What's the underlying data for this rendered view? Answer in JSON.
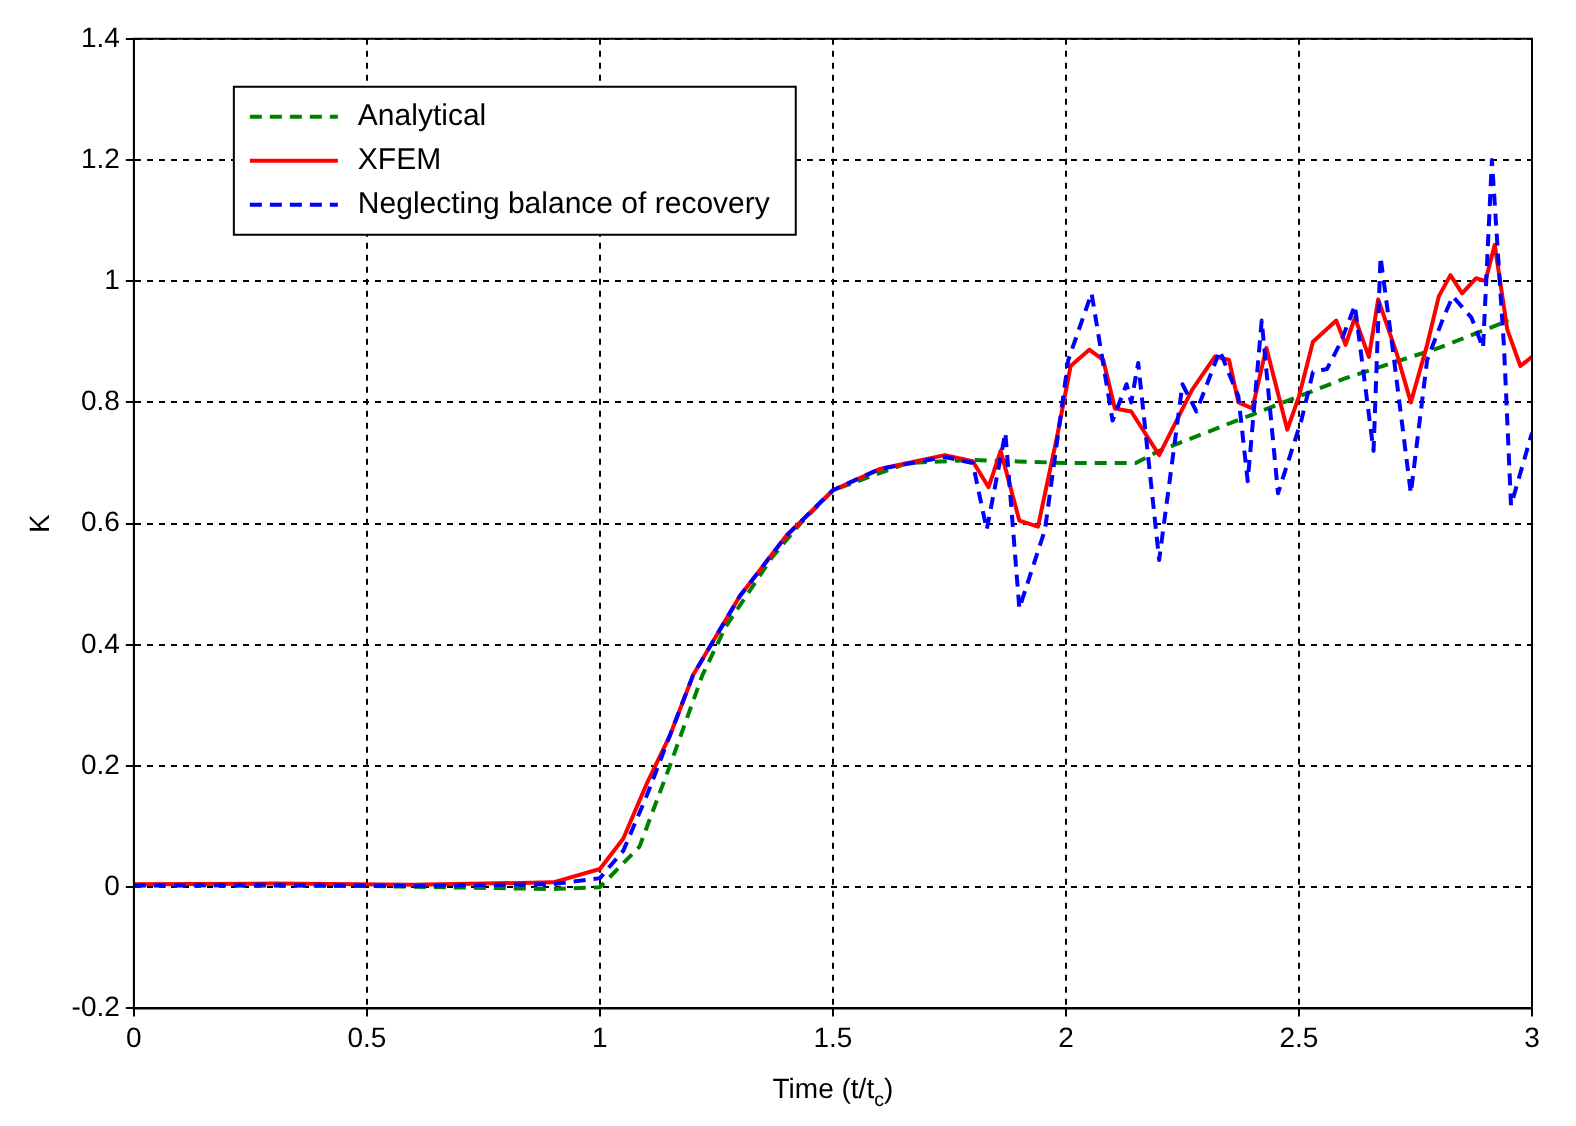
{
  "chart_data": {
    "type": "line",
    "xlabel": "Time (t/t$_{c}$)",
    "ylabel": "K",
    "xlim": [
      0,
      3
    ],
    "ylim": [
      -0.2,
      1.4
    ],
    "xticks": [
      0,
      0.5,
      1,
      1.5,
      2,
      2.5,
      3
    ],
    "yticks": [
      -0.2,
      0,
      0.2,
      0.4,
      0.6,
      0.8,
      1,
      1.2,
      1.4
    ],
    "grid": true,
    "legend": "top left",
    "marker": "none",
    "series": [
      {
        "name": "Analytical",
        "color": "#008000",
        "line_style": "dashed",
        "x": [
          0,
          0.5,
          0.9,
          1.0,
          1.085,
          1.15,
          1.22,
          1.27,
          1.37,
          1.43,
          1.5,
          1.66,
          1.8,
          2.0,
          2.15,
          2.2,
          2.4,
          2.6,
          2.8,
          2.95
        ],
        "values": [
          0.003,
          0.002,
          -0.003,
          0,
          0.067,
          0.2,
          0.35,
          0.43,
          0.545,
          0.6,
          0.655,
          0.7,
          0.705,
          0.7,
          0.7,
          0.72,
          0.78,
          0.84,
          0.89,
          0.935
        ]
      },
      {
        "name": "XFEM",
        "color": "#ff0000",
        "line_style": "solid",
        "x": [
          0,
          0.3,
          0.6,
          0.9,
          1.0,
          1.05,
          1.1,
          1.15,
          1.2,
          1.3,
          1.4,
          1.5,
          1.6,
          1.74,
          1.8,
          1.834,
          1.86,
          1.9,
          1.94,
          1.98,
          2.01,
          2.05,
          2.08,
          2.105,
          2.14,
          2.2,
          2.27,
          2.32,
          2.35,
          2.37,
          2.4,
          2.43,
          2.475,
          2.5,
          2.53,
          2.58,
          2.6,
          2.62,
          2.65,
          2.67,
          2.71,
          2.74,
          2.775,
          2.8,
          2.825,
          2.85,
          2.88,
          2.9,
          2.92,
          2.947,
          2.975,
          3.0
        ],
        "values": [
          0.005,
          0.006,
          0.004,
          0.008,
          0.03,
          0.08,
          0.17,
          0.25,
          0.35,
          0.48,
          0.58,
          0.655,
          0.69,
          0.713,
          0.703,
          0.66,
          0.72,
          0.605,
          0.595,
          0.74,
          0.86,
          0.887,
          0.87,
          0.79,
          0.785,
          0.713,
          0.82,
          0.876,
          0.87,
          0.8,
          0.79,
          0.89,
          0.755,
          0.81,
          0.9,
          0.935,
          0.895,
          0.94,
          0.875,
          0.97,
          0.88,
          0.8,
          0.895,
          0.975,
          1.01,
          0.98,
          1.005,
          1.0,
          1.06,
          0.92,
          0.86,
          0.875
        ]
      },
      {
        "name": "Neglecting balance of recovery",
        "color": "#0000ff",
        "line_style": "dashed",
        "x": [
          0,
          0.3,
          0.6,
          0.9,
          1.0,
          1.05,
          1.1,
          1.15,
          1.2,
          1.3,
          1.4,
          1.5,
          1.6,
          1.74,
          1.8,
          1.83,
          1.87,
          1.9,
          1.955,
          2.005,
          2.055,
          2.1,
          2.13,
          2.14,
          2.155,
          2.2,
          2.25,
          2.28,
          2.33,
          2.37,
          2.39,
          2.42,
          2.455,
          2.505,
          2.53,
          2.56,
          2.59,
          2.62,
          2.66,
          2.675,
          2.7,
          2.74,
          2.775,
          2.81,
          2.83,
          2.87,
          2.895,
          2.914,
          2.94,
          2.955,
          3.0
        ],
        "values": [
          0.003,
          0.004,
          0.002,
          0.005,
          0.015,
          0.06,
          0.15,
          0.25,
          0.35,
          0.48,
          0.58,
          0.655,
          0.69,
          0.71,
          0.7,
          0.59,
          0.75,
          0.46,
          0.59,
          0.87,
          0.98,
          0.77,
          0.83,
          0.8,
          0.865,
          0.54,
          0.83,
          0.785,
          0.885,
          0.81,
          0.67,
          0.935,
          0.65,
          0.77,
          0.85,
          0.855,
          0.9,
          0.96,
          0.72,
          1.04,
          0.895,
          0.65,
          0.87,
          0.94,
          0.975,
          0.94,
          0.89,
          1.2,
          0.89,
          0.63,
          0.75
        ]
      }
    ]
  }
}
